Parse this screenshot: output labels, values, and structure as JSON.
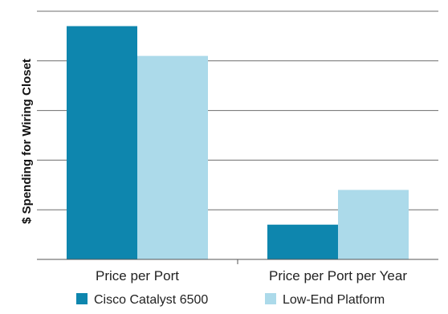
{
  "chart_data": {
    "type": "bar",
    "categories": [
      "Price per Port",
      "Price per Port per Year"
    ],
    "series": [
      {
        "name": "Cisco Catalyst 6500",
        "values": [
          4.7,
          0.7
        ],
        "color": "#0e86ae"
      },
      {
        "name": "Low-End Platform",
        "values": [
          4.1,
          1.4
        ],
        "color": "#acdaea"
      }
    ],
    "ylabel": "$ Spending for Wiring Closet",
    "ylim": [
      0,
      5.0
    ],
    "y_ticks_shown": false,
    "grid": true,
    "legend_position": "bottom"
  }
}
